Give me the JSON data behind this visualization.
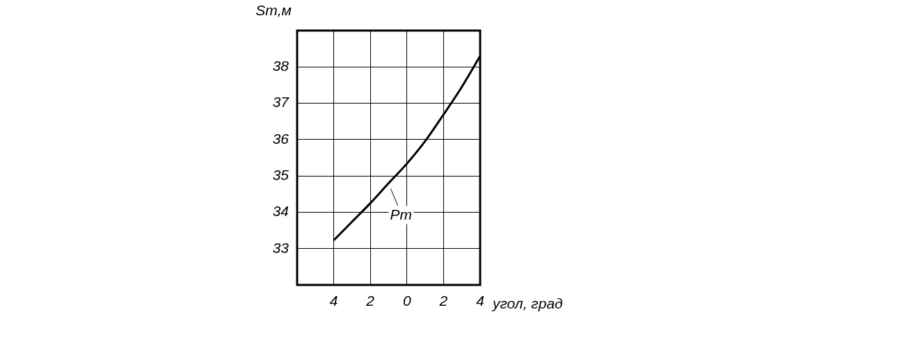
{
  "chart_data": {
    "type": "line",
    "xlabel": "угол, град",
    "ylabel": "Sm,м",
    "xlim": [
      -6,
      4
    ],
    "ylim": [
      32,
      39
    ],
    "xticks": [
      {
        "value": -4,
        "label": "4"
      },
      {
        "value": -2,
        "label": "2"
      },
      0,
      2,
      {
        "value": 4,
        "label": "4"
      }
    ],
    "yticks": [
      33,
      34,
      35,
      36,
      37,
      38
    ],
    "grid": true,
    "legend": false,
    "marker": "none",
    "line_style": "solid",
    "series": [
      {
        "color": "#000000",
        "x": [
          -4,
          -3,
          -2,
          -1,
          0,
          1,
          2,
          3,
          4
        ],
        "values": [
          33.23,
          33.74,
          34.25,
          34.8,
          35.34,
          35.96,
          36.69,
          37.45,
          38.3
        ]
      }
    ],
    "annotations": [
      {
        "text": "Pm",
        "x": -1,
        "y": 34.8
      }
    ]
  }
}
